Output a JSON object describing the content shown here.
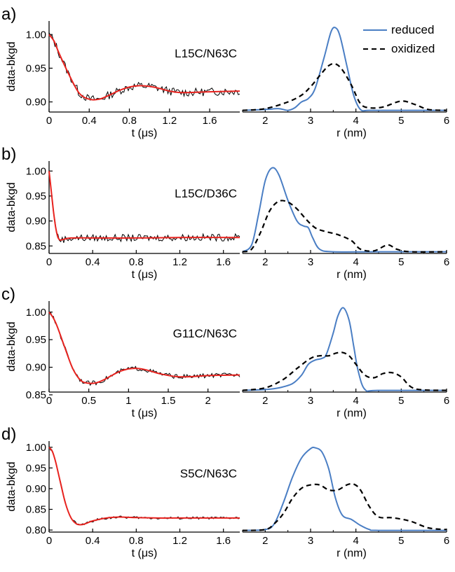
{
  "figure": {
    "colors": {
      "data": "#000000",
      "fit": "#e8231f",
      "reduced": "#4a7ec4",
      "oxidized": "#000000"
    },
    "legend": {
      "placement": "top-right of first distance plot",
      "items": [
        {
          "label": "reduced",
          "style": "solid",
          "color": "#4a7ec4"
        },
        {
          "label": "oxidized",
          "style": "dashed",
          "color": "#000000"
        }
      ]
    }
  },
  "chart_data": [
    {
      "panel": "a)",
      "type": "line",
      "sample_label": "L15C/N63C",
      "xlabel": "t (μs)",
      "ylabel": "data-bkgd",
      "xlim": [
        0,
        1.9
      ],
      "ylim": [
        0.885,
        1.02
      ],
      "xticks": [
        "0",
        "0.4",
        "0.8",
        "1.2",
        "1.6"
      ],
      "xtick_values": [
        0,
        0.4,
        0.8,
        1.2,
        1.6
      ],
      "yticks": [
        "1.00",
        "0.95",
        "0.90"
      ],
      "ytick_values": [
        1.0,
        0.95,
        0.9
      ],
      "fit": {
        "x": [
          0,
          0.05,
          0.1,
          0.2,
          0.3,
          0.4,
          0.5,
          0.6,
          0.7,
          0.8,
          0.9,
          1.0,
          1.1,
          1.2,
          1.3,
          1.4,
          1.6,
          1.9
        ],
        "y": [
          1.0,
          0.99,
          0.972,
          0.94,
          0.913,
          0.904,
          0.904,
          0.91,
          0.917,
          0.922,
          0.924,
          0.923,
          0.92,
          0.916,
          0.914,
          0.914,
          0.915,
          0.916
        ]
      },
      "noise": 0.006,
      "series": [
        {
          "name": "",
          "role": "data"
        },
        {
          "name": "",
          "role": "fit"
        }
      ]
    },
    {
      "panel": "a)",
      "type": "line",
      "xlabel": "r (nm)",
      "ylabel": "",
      "xlim": [
        1.5,
        6
      ],
      "ylim": [
        0,
        1.08
      ],
      "xticks": [
        "2",
        "3",
        "4",
        "5",
        "6"
      ],
      "xtick_values": [
        2,
        3,
        4,
        5,
        6
      ],
      "series": [
        {
          "name": "reduced",
          "x": [
            1.5,
            2.0,
            2.3,
            2.5,
            2.65,
            2.8,
            2.95,
            3.1,
            3.3,
            3.45,
            3.55,
            3.65,
            3.8,
            3.95,
            4.1,
            4.3,
            5.0,
            6.0
          ],
          "y": [
            0.02,
            0.03,
            0.04,
            0.02,
            0.05,
            0.12,
            0.16,
            0.28,
            0.65,
            0.95,
            1.0,
            0.9,
            0.55,
            0.2,
            0.03,
            0.02,
            0.02,
            0.02
          ]
        },
        {
          "name": "oxidized",
          "x": [
            1.5,
            2.0,
            2.5,
            2.8,
            3.0,
            3.2,
            3.4,
            3.55,
            3.7,
            3.9,
            4.1,
            4.3,
            4.6,
            5.0,
            5.3,
            5.6,
            6.0
          ],
          "y": [
            0.02,
            0.04,
            0.12,
            0.2,
            0.3,
            0.43,
            0.55,
            0.57,
            0.5,
            0.32,
            0.1,
            0.05,
            0.06,
            0.13,
            0.09,
            0.03,
            0.02
          ]
        }
      ]
    },
    {
      "panel": "b)",
      "type": "line",
      "sample_label": "L15C/D36C",
      "xlabel": "t (μs)",
      "ylabel": "data-bkgd",
      "xlim": [
        0,
        1.75
      ],
      "ylim": [
        0.835,
        1.02
      ],
      "xticks": [
        "0",
        "0.4",
        "0.8",
        "1.2",
        "1.6"
      ],
      "xtick_values": [
        0,
        0.4,
        0.8,
        1.2,
        1.6
      ],
      "yticks": [
        "1.00",
        "0.95",
        "0.90",
        "0.85"
      ],
      "ytick_values": [
        1.0,
        0.95,
        0.9,
        0.85
      ],
      "fit": {
        "x": [
          0,
          0.02,
          0.04,
          0.06,
          0.08,
          0.1,
          0.13,
          0.2,
          0.4,
          0.8,
          1.2,
          1.75
        ],
        "y": [
          1.0,
          0.96,
          0.92,
          0.888,
          0.868,
          0.862,
          0.863,
          0.866,
          0.866,
          0.866,
          0.867,
          0.867
        ]
      },
      "noise": 0.007,
      "series": [
        {
          "name": "",
          "role": "data"
        },
        {
          "name": "",
          "role": "fit"
        }
      ]
    },
    {
      "panel": "b)",
      "type": "line",
      "xlabel": "r (nm)",
      "ylabel": "",
      "xlim": [
        1.5,
        6
      ],
      "ylim": [
        0,
        1.08
      ],
      "xticks": [
        "2",
        "3",
        "4",
        "5",
        "6"
      ],
      "xtick_values": [
        2,
        3,
        4,
        5,
        6
      ],
      "series": [
        {
          "name": "reduced",
          "x": [
            1.5,
            1.7,
            1.85,
            2.0,
            2.15,
            2.3,
            2.5,
            2.7,
            2.85,
            2.95,
            3.05,
            3.2,
            3.5,
            4.5,
            6.0
          ],
          "y": [
            0.02,
            0.1,
            0.45,
            0.85,
            1.0,
            0.92,
            0.62,
            0.38,
            0.32,
            0.3,
            0.18,
            0.05,
            0.02,
            0.02,
            0.02
          ]
        },
        {
          "name": "oxidized",
          "x": [
            1.5,
            1.7,
            1.9,
            2.1,
            2.3,
            2.5,
            2.7,
            2.9,
            3.1,
            3.3,
            3.6,
            3.9,
            4.1,
            4.4,
            4.7,
            4.9,
            5.2,
            6.0
          ],
          "y": [
            0.02,
            0.05,
            0.25,
            0.5,
            0.61,
            0.6,
            0.52,
            0.4,
            0.3,
            0.26,
            0.22,
            0.15,
            0.05,
            0.03,
            0.1,
            0.05,
            0.02,
            0.02
          ]
        }
      ]
    },
    {
      "panel": "c)",
      "type": "line",
      "sample_label": "G11C/N63C",
      "xlabel": "t (μs)",
      "ylabel": "data-bkgd",
      "xlim": [
        0,
        2.4
      ],
      "ylim": [
        0.855,
        1.02
      ],
      "xticks": [
        "0",
        "0.5",
        "1",
        "1.5",
        "2"
      ],
      "xtick_values": [
        0,
        0.5,
        1,
        1.5,
        2
      ],
      "yticks": [
        "1.00",
        "0.95",
        "0.90",
        "0.85"
      ],
      "ytick_values": [
        1.0,
        0.95,
        0.9,
        0.85
      ],
      "fit": {
        "x": [
          0,
          0.05,
          0.1,
          0.2,
          0.3,
          0.4,
          0.5,
          0.6,
          0.7,
          0.8,
          0.9,
          1.0,
          1.1,
          1.2,
          1.3,
          1.4,
          1.6,
          1.8,
          2.0,
          2.4
        ],
        "y": [
          1.0,
          0.99,
          0.975,
          0.935,
          0.897,
          0.876,
          0.871,
          0.872,
          0.878,
          0.886,
          0.893,
          0.897,
          0.898,
          0.896,
          0.892,
          0.888,
          0.883,
          0.883,
          0.885,
          0.886
        ]
      },
      "noise": 0.004,
      "series": [
        {
          "name": "",
          "role": "data"
        },
        {
          "name": "",
          "role": "fit"
        }
      ]
    },
    {
      "panel": "c)",
      "type": "line",
      "xlabel": "r (nm)",
      "ylabel": "",
      "xlim": [
        1.5,
        6
      ],
      "ylim": [
        0,
        1.08
      ],
      "xticks": [
        "2",
        "3",
        "4",
        "5",
        "6"
      ],
      "xtick_values": [
        2,
        3,
        4,
        5,
        6
      ],
      "series": [
        {
          "name": "reduced",
          "x": [
            1.5,
            2.0,
            2.3,
            2.6,
            2.8,
            2.95,
            3.1,
            3.25,
            3.35,
            3.5,
            3.6,
            3.72,
            3.85,
            3.95,
            4.05,
            4.2,
            4.5,
            6.0
          ],
          "y": [
            0.02,
            0.03,
            0.05,
            0.1,
            0.2,
            0.33,
            0.38,
            0.4,
            0.45,
            0.7,
            0.9,
            1.0,
            0.85,
            0.55,
            0.25,
            0.03,
            0.02,
            0.02
          ]
        },
        {
          "name": "oxidized",
          "x": [
            1.5,
            2.0,
            2.4,
            2.7,
            3.0,
            3.2,
            3.4,
            3.55,
            3.7,
            3.85,
            4.0,
            4.2,
            4.4,
            4.6,
            4.8,
            5.0,
            5.3,
            6.0
          ],
          "y": [
            0.02,
            0.05,
            0.15,
            0.28,
            0.4,
            0.43,
            0.43,
            0.46,
            0.47,
            0.43,
            0.33,
            0.2,
            0.17,
            0.22,
            0.23,
            0.18,
            0.04,
            0.02
          ]
        }
      ]
    },
    {
      "panel": "d)",
      "type": "line",
      "sample_label": "S5C/N63C",
      "xlabel": "t (μs)",
      "ylabel": "data-bkgd",
      "xlim": [
        0,
        1.75
      ],
      "ylim": [
        0.795,
        1.015
      ],
      "xticks": [
        "0",
        "0.4",
        "0.8",
        "1.2",
        "1.6"
      ],
      "xtick_values": [
        0,
        0.4,
        0.8,
        1.2,
        1.6
      ],
      "yticks": [
        "1.00",
        "0.95",
        "0.90",
        "0.85",
        "0.80"
      ],
      "ytick_values": [
        1.0,
        0.95,
        0.9,
        0.85,
        0.8
      ],
      "fit": {
        "x": [
          0,
          0.03,
          0.06,
          0.1,
          0.15,
          0.2,
          0.25,
          0.3,
          0.35,
          0.4,
          0.5,
          0.6,
          0.7,
          0.8,
          1.0,
          1.2,
          1.75
        ],
        "y": [
          1.0,
          0.99,
          0.965,
          0.92,
          0.865,
          0.83,
          0.815,
          0.813,
          0.817,
          0.822,
          0.828,
          0.831,
          0.831,
          0.83,
          0.829,
          0.829,
          0.829
        ]
      },
      "noise": 0.003,
      "series": [
        {
          "name": "",
          "role": "data"
        },
        {
          "name": "",
          "role": "fit"
        }
      ]
    },
    {
      "panel": "d)",
      "type": "line",
      "xlabel": "r (nm)",
      "ylabel": "",
      "xlim": [
        1.5,
        6
      ],
      "ylim": [
        0,
        1.08
      ],
      "xticks": [
        "2",
        "3",
        "4",
        "5",
        "6"
      ],
      "xtick_values": [
        2,
        3,
        4,
        5,
        6
      ],
      "series": [
        {
          "name": "reduced",
          "x": [
            1.5,
            2.0,
            2.2,
            2.4,
            2.6,
            2.8,
            3.0,
            3.1,
            3.25,
            3.4,
            3.55,
            3.7,
            3.9,
            4.1,
            4.3,
            4.5,
            6.0
          ],
          "y": [
            0.02,
            0.03,
            0.1,
            0.35,
            0.65,
            0.88,
            0.99,
            1.0,
            0.95,
            0.75,
            0.4,
            0.2,
            0.15,
            0.08,
            0.03,
            0.02,
            0.02
          ]
        },
        {
          "name": "oxidized",
          "x": [
            1.5,
            2.0,
            2.2,
            2.4,
            2.6,
            2.8,
            3.0,
            3.2,
            3.4,
            3.6,
            3.8,
            3.95,
            4.1,
            4.3,
            4.5,
            4.8,
            5.2,
            5.6,
            6.0
          ],
          "y": [
            0.02,
            0.03,
            0.1,
            0.22,
            0.4,
            0.52,
            0.56,
            0.56,
            0.5,
            0.5,
            0.56,
            0.57,
            0.5,
            0.3,
            0.18,
            0.17,
            0.13,
            0.05,
            0.03
          ]
        }
      ]
    }
  ]
}
